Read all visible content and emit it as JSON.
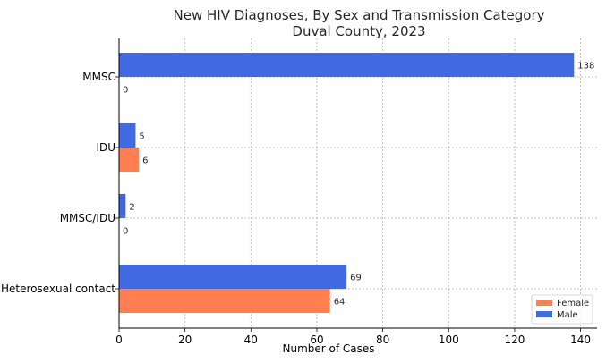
{
  "chart_data": {
    "type": "bar",
    "orientation": "horizontal",
    "title_lines": [
      "New HIV Diagnoses, By Sex and Transmission Category",
      "Duval County, 2023"
    ],
    "xlabel": "Number of Cases",
    "ylabel": "",
    "xlim": [
      0,
      145
    ],
    "xticks": [
      0,
      20,
      40,
      60,
      80,
      100,
      120,
      140
    ],
    "grid": true,
    "legend_position": "bottom-right",
    "categories": [
      "MMSC",
      "IDU",
      "MMSC/IDU",
      "Heterosexual contact"
    ],
    "series": [
      {
        "name": "Female",
        "color": "#ff7f50",
        "values": [
          0,
          6,
          0,
          64
        ]
      },
      {
        "name": "Male",
        "color": "#4169e1",
        "values": [
          138,
          5,
          2,
          69
        ]
      }
    ]
  }
}
